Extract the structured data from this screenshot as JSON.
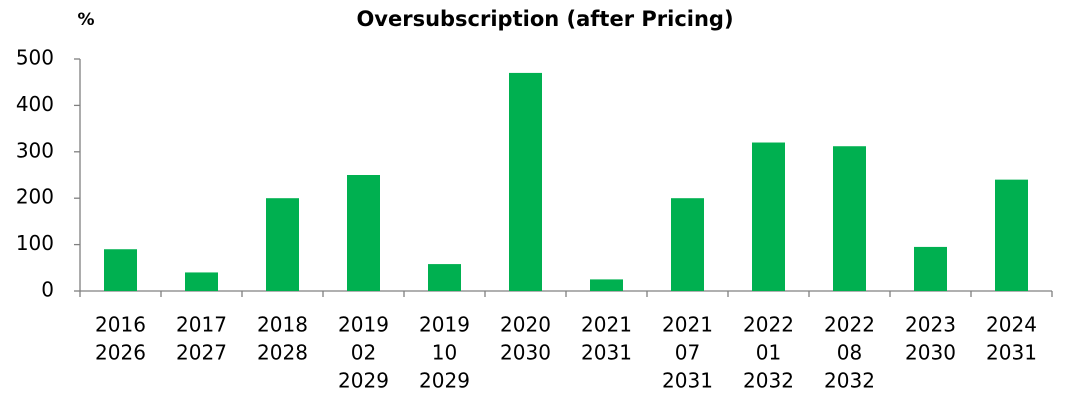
{
  "chart_data": {
    "type": "bar",
    "title": "Oversubscription (after Pricing)",
    "y_label": "%",
    "categories": [
      [
        "2016",
        "2026"
      ],
      [
        "2017",
        "2027"
      ],
      [
        "2018",
        "2028"
      ],
      [
        "2019",
        "02",
        "2029"
      ],
      [
        "2019",
        "10",
        "2029"
      ],
      [
        "2020",
        "2030"
      ],
      [
        "2021",
        "2031"
      ],
      [
        "2021",
        "07",
        "2031"
      ],
      [
        "2022",
        "01",
        "2032"
      ],
      [
        "2022",
        "08",
        "2032"
      ],
      [
        "2023",
        "2030"
      ],
      [
        "2024",
        "2031"
      ]
    ],
    "values": [
      90,
      40,
      200,
      250,
      58,
      470,
      25,
      200,
      320,
      312,
      95,
      240
    ],
    "color": "#00b050",
    "ylim": [
      0,
      500
    ],
    "yticks": [
      0,
      100,
      200,
      300,
      400,
      500
    ],
    "grid": false
  }
}
